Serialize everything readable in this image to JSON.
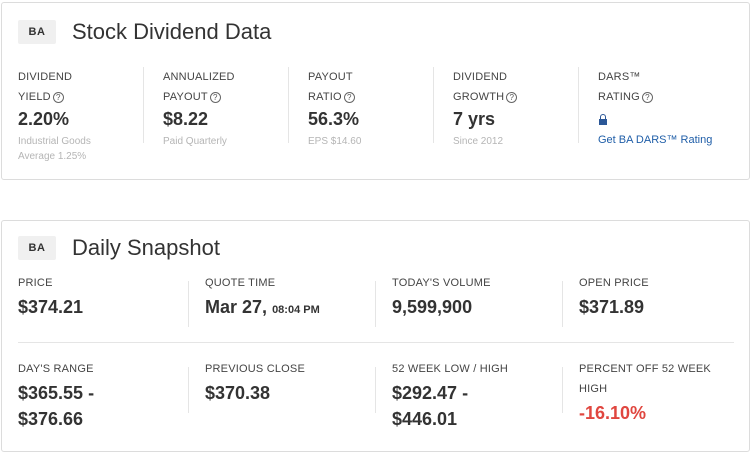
{
  "dividend_card": {
    "ticker": "BA",
    "title": "Stock Dividend Data",
    "columns": [
      {
        "label_line1": "DIVIDEND",
        "label_line2": "YIELD",
        "value": "2.20%",
        "sub_line1": "Industrial Goods",
        "sub_line2": "Average 1.25%"
      },
      {
        "label_line1": "ANNUALIZED",
        "label_line2": "PAYOUT",
        "value": "$8.22",
        "sub_line1": "Paid Quarterly",
        "sub_line2": ""
      },
      {
        "label_line1": "PAYOUT",
        "label_line2": "RATIO",
        "value": "56.3%",
        "sub_line1": "EPS $14.60",
        "sub_line2": ""
      },
      {
        "label_line1": "DIVIDEND",
        "label_line2": "GROWTH",
        "value": "7 yrs",
        "sub_line1": "Since 2012",
        "sub_line2": ""
      },
      {
        "label_line1": "DARS™",
        "label_line2": "RATING",
        "link": "Get BA DARS™ Rating"
      }
    ],
    "help_glyph": "?"
  },
  "snapshot_card": {
    "ticker": "BA",
    "title": "Daily Snapshot",
    "cells": [
      {
        "label": "PRICE",
        "value": "$374.21"
      },
      {
        "label": "QUOTE TIME",
        "value": "Mar 27,",
        "value_small": "08:04 PM"
      },
      {
        "label": "TODAY'S VOLUME",
        "value": "9,599,900"
      },
      {
        "label": "OPEN PRICE",
        "value": "$371.89"
      },
      {
        "label": "DAY'S RANGE",
        "value_line1": "$365.55 -",
        "value_line2": "$376.66"
      },
      {
        "label": "PREVIOUS CLOSE",
        "value": "$370.38"
      },
      {
        "label": "52 WEEK LOW / HIGH",
        "value_line1": "$292.47 -",
        "value_line2": "$446.01"
      },
      {
        "label_line1": "PERCENT OFF 52 WEEK",
        "label_line2": "HIGH",
        "value": "-16.10%"
      }
    ]
  },
  "colors": {
    "negative": "#e0463f",
    "link": "#1f5ea8",
    "muted": "#b5b5b5"
  },
  "icons": [
    "help-circle-icon",
    "lock-icon"
  ]
}
